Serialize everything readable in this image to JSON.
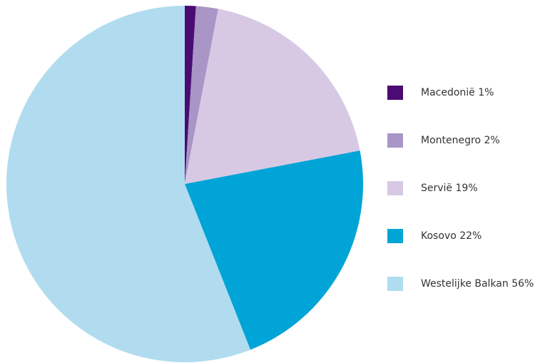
{
  "chart_data": {
    "type": "pie",
    "categories": [
      "Macedonië",
      "Montenegro",
      "Servië",
      "Kosovo",
      "Westelijke Balkan"
    ],
    "values": [
      1,
      2,
      19,
      22,
      56
    ],
    "value_labels": [
      "1%",
      "2%",
      "19%",
      "22%",
      "56%"
    ],
    "colors": [
      "#4a0c72",
      "#a995c6",
      "#d7c9e4",
      "#00a4d6",
      "#b1dcf0"
    ],
    "legend": "right"
  }
}
